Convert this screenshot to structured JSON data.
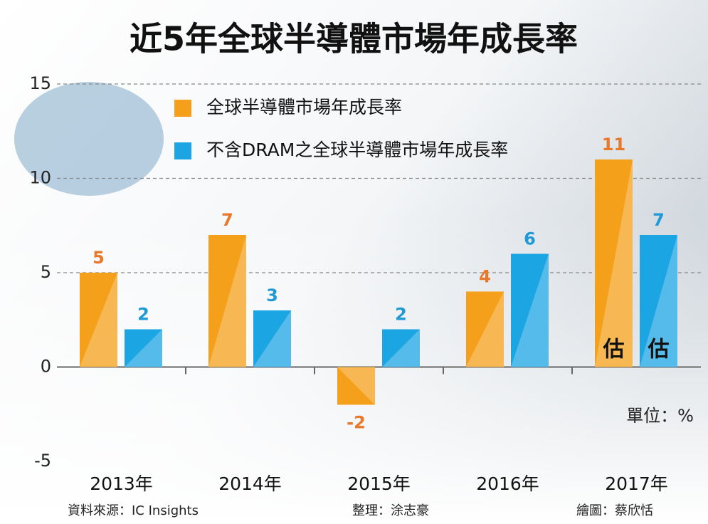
{
  "chart_data": {
    "type": "bar",
    "title": "近5年全球半導體市場年成長率",
    "categories": [
      "2013年",
      "2014年",
      "2015年",
      "2016年",
      "2017年"
    ],
    "series": [
      {
        "name": "全球半導體市場年成長率",
        "color": "#f5a01a",
        "label_color": "#e8782a",
        "values": [
          5,
          7,
          -2,
          4,
          11
        ]
      },
      {
        "name": "不含DRAM之全球半導體市場年成長率",
        "color": "#1ba5e3",
        "label_color": "#1e9ad6",
        "values": [
          2,
          3,
          2,
          6,
          7
        ]
      }
    ],
    "estimate_labels": [
      "估",
      "估"
    ],
    "ylim": [
      -5,
      15
    ],
    "yticks": [
      15,
      10,
      5,
      0,
      -5
    ],
    "grid": true,
    "unit": "單位：%",
    "footer": [
      "資料來源：IC Insights",
      "整理：涂志豪",
      "繪圖：蔡欣恬"
    ]
  }
}
